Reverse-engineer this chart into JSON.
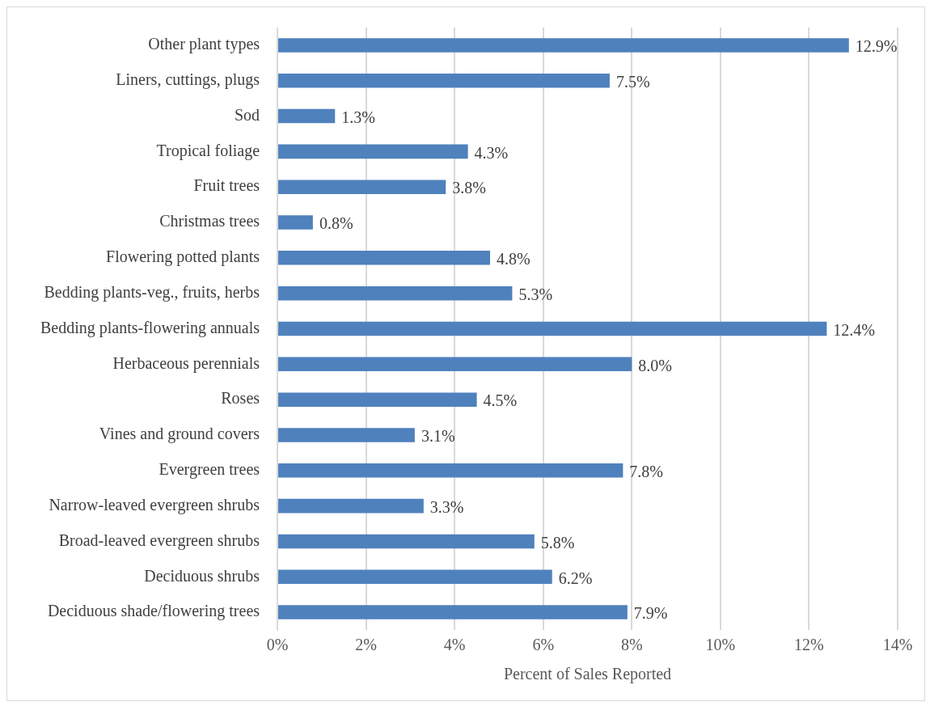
{
  "chart_data": {
    "type": "bar",
    "orientation": "horizontal",
    "xlabel": "Percent of Sales Reported",
    "categories": [
      "Other plant types",
      "Liners, cuttings, plugs",
      "Sod",
      "Tropical foliage",
      "Fruit trees",
      "Christmas trees",
      "Flowering potted plants",
      "Bedding plants-veg., fruits, herbs",
      "Bedding plants-flowering annuals",
      "Herbaceous perennials",
      "Roses",
      "Vines and ground covers",
      "Evergreen trees",
      "Narrow-leaved evergreen shrubs",
      "Broad-leaved evergreen shrubs",
      "Deciduous shrubs",
      "Deciduous shade/flowering trees"
    ],
    "values": [
      12.9,
      7.5,
      1.3,
      4.3,
      3.8,
      0.8,
      4.8,
      5.3,
      12.4,
      8.0,
      4.5,
      3.1,
      7.8,
      3.3,
      5.8,
      6.2,
      7.9
    ],
    "value_labels": [
      "12.9%",
      "7.5%",
      "1.3%",
      "4.3%",
      "3.8%",
      "0.8%",
      "4.8%",
      "5.3%",
      "12.4%",
      "8.0%",
      "4.5%",
      "3.1%",
      "7.8%",
      "3.3%",
      "5.8%",
      "6.2%",
      "7.9%"
    ],
    "color": "#4f81bd",
    "xlim": [
      0,
      14
    ],
    "xticks": [
      {
        "value": 0,
        "label": "0%"
      },
      {
        "value": 2,
        "label": "2%"
      },
      {
        "value": 4,
        "label": "4%"
      },
      {
        "value": 6,
        "label": "6%"
      },
      {
        "value": 8,
        "label": "8%"
      },
      {
        "value": 10,
        "label": "10%"
      },
      {
        "value": 12,
        "label": "12%"
      },
      {
        "value": 14,
        "label": "14%"
      }
    ],
    "grid": "x",
    "legend": false
  }
}
